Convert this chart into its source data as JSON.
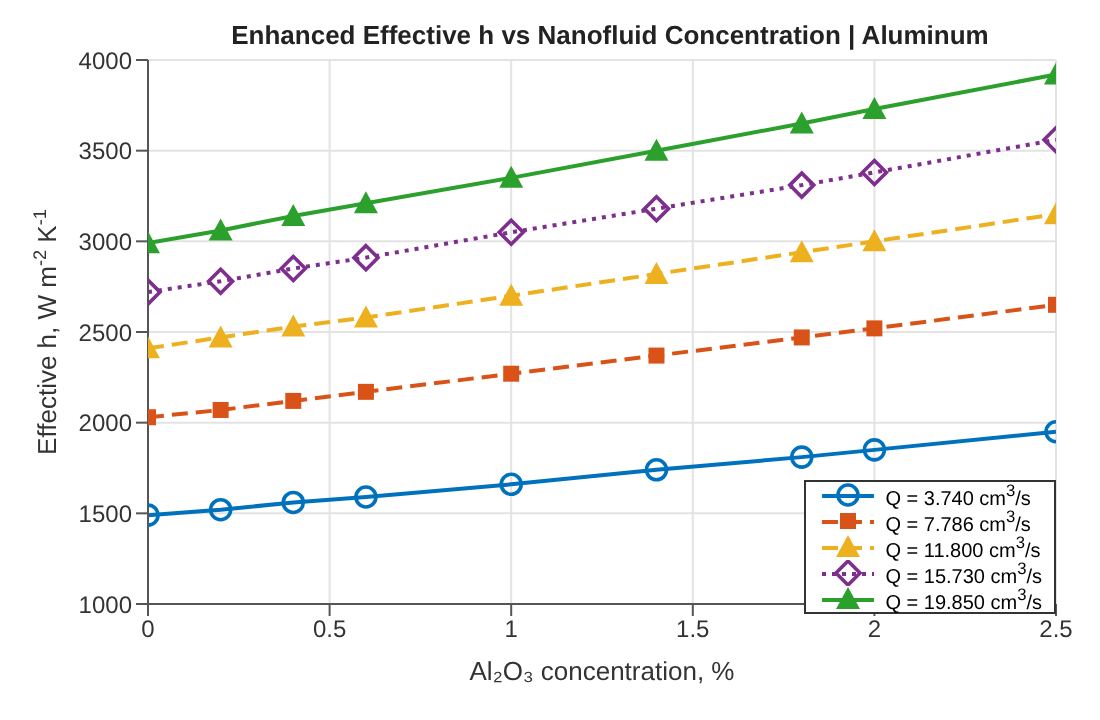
{
  "chart_data": {
    "type": "line",
    "title": "Enhanced Effective h vs Nanofluid Concentration | Aluminum",
    "xlabel": "Al₂O₃ concentration, %",
    "ylabel": "Effective h, W m$^{-2}$ K$^{-1}$",
    "x": [
      0,
      0.2,
      0.4,
      0.6,
      1.0,
      1.4,
      1.8,
      2.0,
      2.5
    ],
    "series": [
      {
        "name": "Q = 3.740 cm$^{3}$/s",
        "color": "#0072bd",
        "marker": "circle",
        "line_style": "solid",
        "values": [
          1490,
          1520,
          1560,
          1590,
          1660,
          1740,
          1810,
          1850,
          1950
        ]
      },
      {
        "name": "Q = 7.786 cm$^{3}$/s",
        "color": "#d95319",
        "marker": "square",
        "line_style": "dashed",
        "values": [
          2030,
          2070,
          2120,
          2170,
          2270,
          2370,
          2470,
          2520,
          2650
        ]
      },
      {
        "name": "Q = 11.800 cm$^{3}$/s",
        "color": "#edb120",
        "marker": "triangle",
        "line_style": "dashed",
        "values": [
          2410,
          2470,
          2530,
          2580,
          2700,
          2820,
          2940,
          3000,
          3150
        ]
      },
      {
        "name": "Q = 15.730 cm$^{3}$/s",
        "color": "#7e2f8e",
        "marker": "diamond",
        "line_style": "dotted",
        "values": [
          2720,
          2780,
          2850,
          2910,
          3050,
          3180,
          3310,
          3380,
          3560
        ]
      },
      {
        "name": "Q = 19.850 cm$^{3}$/s",
        "color": "#2ca02c",
        "marker": "triangle",
        "line_style": "solid",
        "values": [
          2990,
          3060,
          3140,
          3210,
          3350,
          3500,
          3650,
          3730,
          3920
        ]
      }
    ],
    "xlim": [
      0,
      2.5
    ],
    "xticks": [
      0,
      0.5,
      1,
      1.5,
      2,
      2.5
    ],
    "ylim": [
      1000,
      4000
    ],
    "yticks": [
      1000,
      1500,
      2000,
      2500,
      3000,
      3500,
      4000
    ],
    "grid": true,
    "legend": "bottom right"
  }
}
